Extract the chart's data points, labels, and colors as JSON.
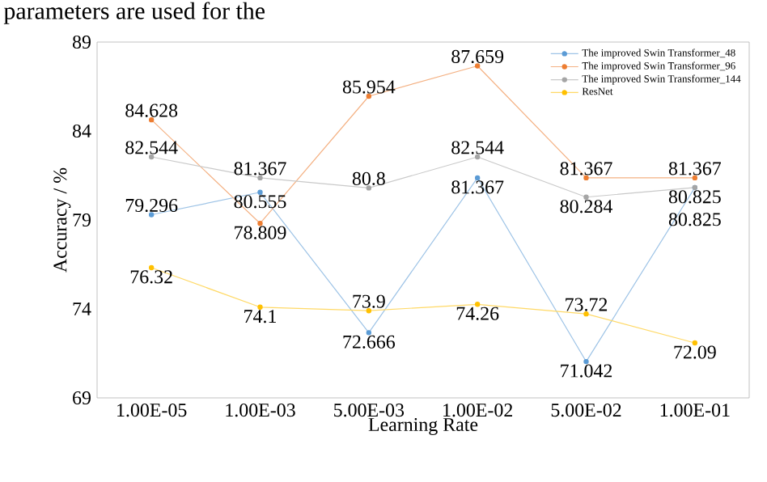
{
  "chart_data": {
    "type": "line",
    "xlabel": "Learning Rate",
    "ylabel": "Accuracy / %",
    "annotations": [
      "parameters are used for the"
    ],
    "categories": [
      "1.00E-05",
      "1.00E-03",
      "5.00E-03",
      "1.00E-02",
      "5.00E-02",
      "1.00E-01"
    ],
    "series": [
      {
        "name": "The improved Swin Transformer_48",
        "color": "#5b9bd5",
        "values": [
          79.296,
          80.555,
          72.666,
          81.367,
          71.042,
          80.825
        ]
      },
      {
        "name": "The improved Swin Transformer_96",
        "color": "#ed7d31",
        "values": [
          84.628,
          78.809,
          85.954,
          87.659,
          81.367,
          81.367
        ]
      },
      {
        "name": "The improved Swin Transformer_144",
        "color": "#a5a5a5",
        "values": [
          82.544,
          81.367,
          80.8,
          82.544,
          80.284,
          80.825
        ]
      },
      {
        "name": "ResNet",
        "color": "#ffc000",
        "values": [
          76.32,
          74.1,
          73.9,
          74.26,
          73.72,
          72.09
        ]
      }
    ],
    "ylim": [
      69,
      89
    ],
    "yticks": [
      69,
      74,
      79,
      84,
      89
    ],
    "data_labels": true,
    "legend": "top right",
    "marker": "circle",
    "line_style": "solid",
    "grid": false
  }
}
